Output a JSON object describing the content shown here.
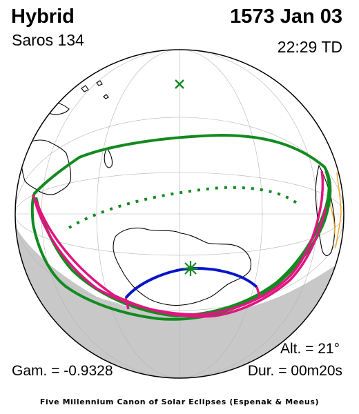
{
  "header": {
    "eclipse_type": "Hybrid",
    "saros": "Saros 134",
    "date": "1573 Jan 03",
    "time": "22:29 TD"
  },
  "stats": {
    "altitude": "Alt. = 21°",
    "gamma": "Gam. = -0.9328",
    "duration": "Dur. = 00m20s"
  },
  "footer": "Five Millennium Canon of Solar Eclipses (Espenak & Meeus)",
  "colors": {
    "penumbra": "#138a20",
    "totality_path": "#e0157f",
    "central_line": "#0a14c8",
    "night_shade": "#c8c8c8",
    "coastline": "#000000",
    "border": "#f2a21a"
  },
  "icons": {
    "greatest_eclipse": "asterisk-star-icon",
    "subsolar_point": "x-marker-icon"
  }
}
